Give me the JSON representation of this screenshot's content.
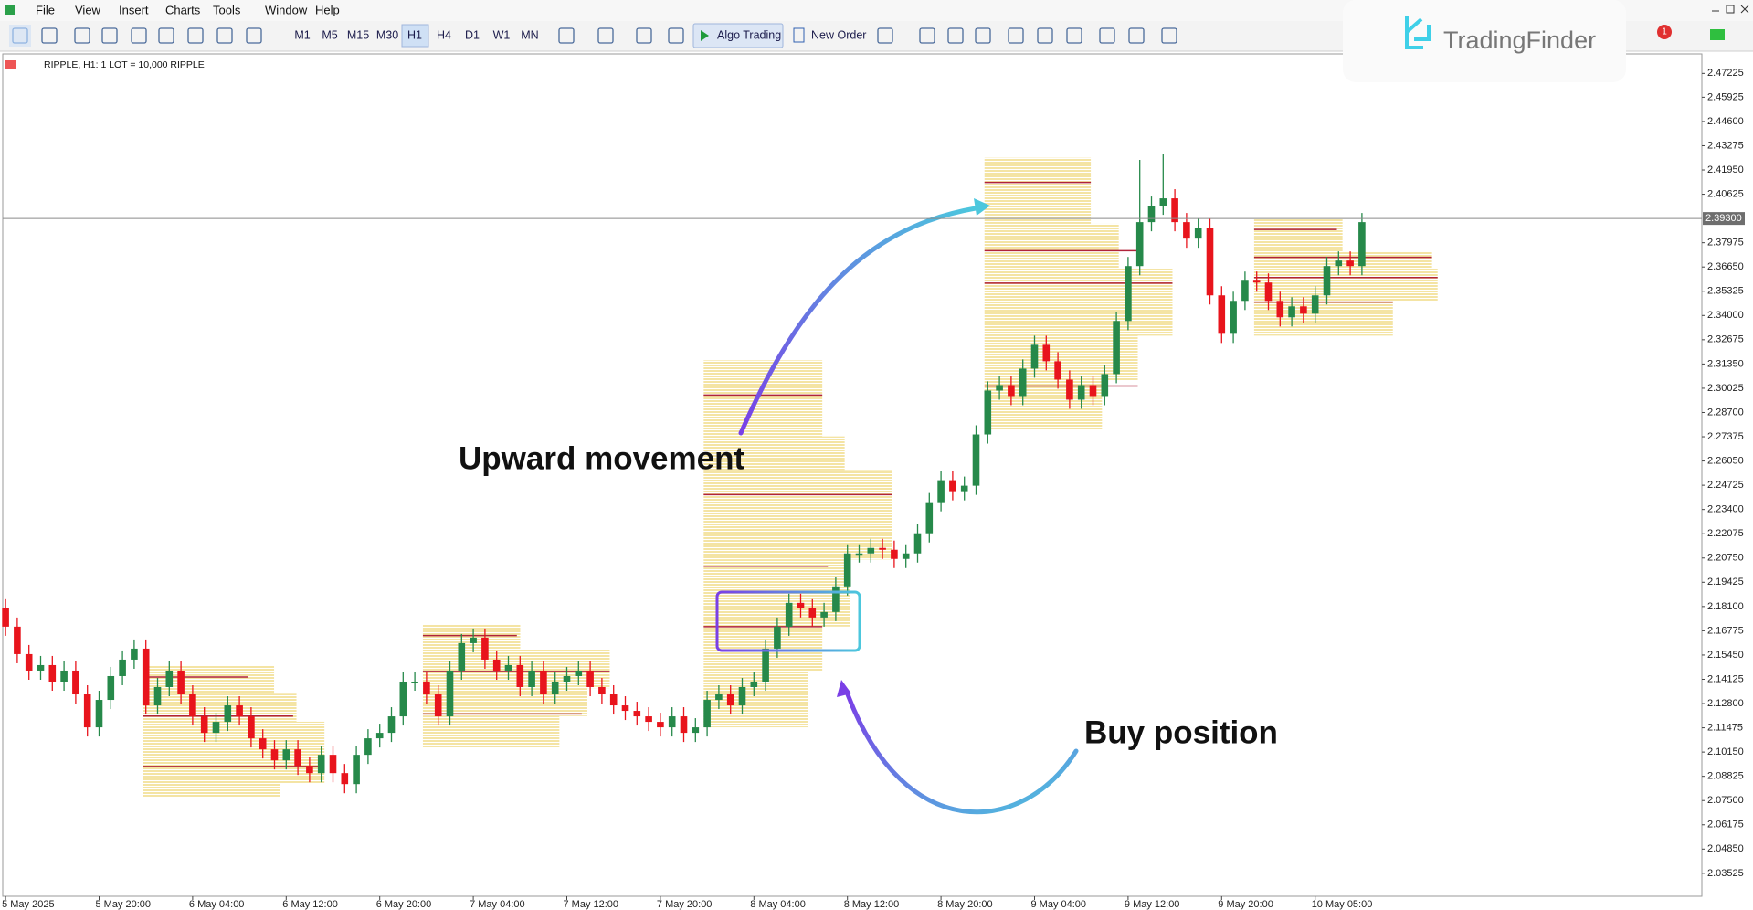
{
  "menu": [
    "File",
    "View",
    "Insert",
    "Charts",
    "Tools",
    "Window",
    "Help"
  ],
  "toolbar": {
    "timeframes": [
      "M1",
      "M5",
      "M15",
      "M30",
      "H1",
      "H4",
      "D1",
      "W1",
      "MN"
    ],
    "algo_trading": "Algo Trading",
    "new_order": "New Order"
  },
  "logo": "TradingFinder",
  "notification_count": 1,
  "chart_header": "RIPPLE, H1:  1 LOT = 10,000 RIPPLE",
  "chart_data": {
    "type": "candlestick",
    "up_color": "#26894a",
    "down_color": "#e8141c",
    "annotations": [
      "Upward movement",
      "Buy position"
    ],
    "price_line": {
      "value": 2.393,
      "label": "2.39300"
    },
    "ylim": [
      2.0227,
      2.4829
    ],
    "yticks": [
      2.47225,
      2.45925,
      {
        "value": 2.446,
        "label": "2.44600"
      },
      2.43275,
      {
        "value": 2.4195,
        "label": "2.41950"
      },
      2.40625,
      2.37975,
      {
        "value": 2.3665,
        "label": "2.36650"
      },
      2.35325,
      {
        "value": 2.34,
        "label": "2.34000"
      },
      2.32675,
      {
        "value": 2.3135,
        "label": "2.31350"
      },
      2.30025,
      {
        "value": 2.287,
        "label": "2.28700"
      },
      2.27375,
      {
        "value": 2.2605,
        "label": "2.26050"
      },
      2.24725,
      {
        "value": 2.234,
        "label": "2.23400"
      },
      2.22075,
      {
        "value": 2.2075,
        "label": "2.20750"
      },
      2.19425,
      {
        "value": 2.181,
        "label": "2.18100"
      },
      2.16775,
      {
        "value": 2.1545,
        "label": "2.15450"
      },
      2.14125,
      {
        "value": 2.128,
        "label": "2.12800"
      },
      2.11475,
      {
        "value": 2.1015,
        "label": "2.10150"
      },
      2.08825,
      {
        "value": 2.075,
        "label": "2.07500"
      },
      2.06175,
      {
        "value": 2.0485,
        "label": "2.04850"
      },
      2.03525
    ],
    "categories": [
      "5 May 2025",
      null,
      null,
      null,
      null,
      null,
      null,
      null,
      "5 May 20:00",
      null,
      null,
      null,
      null,
      null,
      null,
      null,
      "6 May 04:00",
      null,
      null,
      null,
      null,
      null,
      null,
      null,
      "6 May 12:00",
      null,
      null,
      null,
      null,
      null,
      null,
      null,
      "6 May 20:00",
      null,
      null,
      null,
      null,
      null,
      null,
      null,
      "7 May 04:00",
      null,
      null,
      null,
      null,
      null,
      null,
      null,
      "7 May 12:00",
      null,
      null,
      null,
      null,
      null,
      null,
      null,
      "7 May 20:00",
      null,
      null,
      null,
      null,
      null,
      null,
      null,
      "8 May 04:00",
      null,
      null,
      null,
      null,
      null,
      null,
      null,
      "8 May 12:00",
      null,
      null,
      null,
      null,
      null,
      null,
      null,
      "8 May 20:00",
      null,
      null,
      null,
      null,
      null,
      null,
      null,
      "9 May 04:00",
      null,
      null,
      null,
      null,
      null,
      null,
      null,
      "9 May 12:00",
      null,
      null,
      null,
      null,
      null,
      null,
      null,
      "9 May 20:00",
      null,
      null,
      null,
      null,
      null,
      null,
      null,
      "10 May 05:00",
      null,
      null,
      null,
      null
    ],
    "open": [
      2.18,
      2.17,
      2.155,
      2.146,
      2.149,
      2.14,
      2.146,
      2.133,
      2.115,
      2.13,
      2.143,
      2.152,
      2.158,
      2.127,
      2.137,
      2.146,
      2.133,
      2.121,
      2.112,
      2.118,
      2.127,
      2.121,
      2.109,
      2.103,
      2.097,
      2.103,
      2.094,
      2.09,
      2.1,
      2.09,
      2.084,
      2.1,
      2.109,
      2.112,
      2.121,
      2.14,
      2.14,
      2.133,
      2.121,
      2.146,
      2.161,
      2.164,
      2.152,
      2.146,
      2.149,
      2.137,
      2.146,
      2.133,
      2.14,
      2.143,
      2.146,
      2.137,
      2.133,
      2.127,
      2.124,
      2.121,
      2.118,
      2.115,
      2.121,
      2.112,
      2.115,
      2.13,
      2.133,
      2.127,
      2.137,
      2.14,
      2.158,
      2.17,
      2.183,
      2.18,
      2.175,
      2.178,
      2.192,
      2.21,
      2.21,
      2.213,
      2.212,
      2.207,
      2.21,
      2.221,
      2.238,
      2.25,
      2.244,
      2.247,
      2.275,
      2.299,
      2.302,
      2.296,
      2.311,
      2.324,
      2.315,
      2.305,
      2.294,
      2.302,
      2.296,
      2.308,
      2.337,
      2.367,
      2.391,
      2.4,
      2.404,
      2.391,
      2.382,
      2.388,
      2.351,
      2.33,
      2.348,
      2.359,
      2.358,
      2.348,
      2.339,
      2.345,
      2.341,
      2.351,
      2.367,
      2.37,
      2.367
    ],
    "high": [
      2.185,
      2.175,
      2.16,
      2.154,
      2.154,
      2.151,
      2.151,
      2.138,
      2.135,
      2.148,
      2.157,
      2.163,
      2.163,
      2.142,
      2.151,
      2.151,
      2.138,
      2.126,
      2.123,
      2.132,
      2.132,
      2.126,
      2.114,
      2.108,
      2.108,
      2.108,
      2.099,
      2.105,
      2.105,
      2.095,
      2.105,
      2.114,
      2.117,
      2.126,
      2.145,
      2.145,
      2.145,
      2.138,
      2.151,
      2.166,
      2.169,
      2.169,
      2.157,
      2.154,
      2.154,
      2.151,
      2.151,
      2.145,
      2.148,
      2.151,
      2.151,
      2.142,
      2.138,
      2.132,
      2.129,
      2.126,
      2.123,
      2.126,
      2.126,
      2.12,
      2.135,
      2.138,
      2.138,
      2.142,
      2.145,
      2.163,
      2.175,
      2.188,
      2.188,
      2.185,
      2.183,
      2.197,
      2.215,
      2.215,
      2.218,
      2.218,
      2.217,
      2.215,
      2.226,
      2.243,
      2.255,
      2.255,
      2.252,
      2.28,
      2.304,
      2.307,
      2.307,
      2.316,
      2.329,
      2.329,
      2.32,
      2.31,
      2.307,
      2.307,
      2.313,
      2.342,
      2.372,
      2.425,
      2.405,
      2.428,
      2.409,
      2.396,
      2.393,
      2.393,
      2.356,
      2.353,
      2.364,
      2.364,
      2.363,
      2.353,
      2.35,
      2.35,
      2.356,
      2.372,
      2.375,
      2.375,
      2.396
    ],
    "low": [
      2.165,
      2.15,
      2.141,
      2.141,
      2.135,
      2.135,
      2.128,
      2.11,
      2.11,
      2.125,
      2.138,
      2.147,
      2.122,
      2.122,
      2.132,
      2.128,
      2.116,
      2.107,
      2.107,
      2.113,
      2.116,
      2.104,
      2.098,
      2.092,
      2.092,
      2.089,
      2.085,
      2.085,
      2.085,
      2.079,
      2.079,
      2.095,
      2.104,
      2.107,
      2.116,
      2.135,
      2.128,
      2.116,
      2.116,
      2.141,
      2.156,
      2.147,
      2.141,
      2.141,
      2.132,
      2.132,
      2.128,
      2.128,
      2.135,
      2.138,
      2.132,
      2.128,
      2.122,
      2.119,
      2.116,
      2.113,
      2.11,
      2.11,
      2.107,
      2.107,
      2.11,
      2.125,
      2.122,
      2.122,
      2.132,
      2.135,
      2.153,
      2.165,
      2.175,
      2.17,
      2.17,
      2.173,
      2.187,
      2.205,
      2.205,
      2.207,
      2.202,
      2.202,
      2.205,
      2.216,
      2.233,
      2.239,
      2.239,
      2.242,
      2.27,
      2.294,
      2.291,
      2.291,
      2.306,
      2.31,
      2.3,
      2.289,
      2.289,
      2.291,
      2.291,
      2.303,
      2.332,
      2.362,
      2.386,
      2.395,
      2.386,
      2.377,
      2.377,
      2.346,
      2.325,
      2.325,
      2.343,
      2.353,
      2.343,
      2.334,
      2.334,
      2.336,
      2.336,
      2.346,
      2.362,
      2.362,
      2.362
    ],
    "close": [
      2.17,
      2.155,
      2.146,
      2.149,
      2.14,
      2.146,
      2.133,
      2.115,
      2.13,
      2.143,
      2.152,
      2.158,
      2.127,
      2.137,
      2.146,
      2.133,
      2.121,
      2.112,
      2.118,
      2.127,
      2.121,
      2.109,
      2.103,
      2.097,
      2.103,
      2.094,
      2.09,
      2.1,
      2.09,
      2.084,
      2.1,
      2.109,
      2.112,
      2.121,
      2.14,
      2.14,
      2.133,
      2.121,
      2.146,
      2.161,
      2.164,
      2.152,
      2.146,
      2.149,
      2.137,
      2.146,
      2.133,
      2.14,
      2.143,
      2.146,
      2.137,
      2.133,
      2.127,
      2.124,
      2.121,
      2.118,
      2.115,
      2.121,
      2.112,
      2.115,
      2.13,
      2.133,
      2.127,
      2.137,
      2.14,
      2.158,
      2.17,
      2.183,
      2.18,
      2.175,
      2.178,
      2.192,
      2.21,
      2.21,
      2.213,
      2.212,
      2.207,
      2.21,
      2.221,
      2.238,
      2.25,
      2.244,
      2.247,
      2.275,
      2.299,
      2.302,
      2.296,
      2.311,
      2.324,
      2.315,
      2.305,
      2.294,
      2.302,
      2.296,
      2.308,
      2.337,
      2.367,
      2.391,
      2.4,
      2.404,
      2.391,
      2.382,
      2.388,
      2.351,
      2.33,
      2.348,
      2.359,
      2.358,
      2.348,
      2.339,
      2.345,
      2.341,
      2.351,
      2.367,
      2.37,
      2.367,
      2.391
    ]
  }
}
